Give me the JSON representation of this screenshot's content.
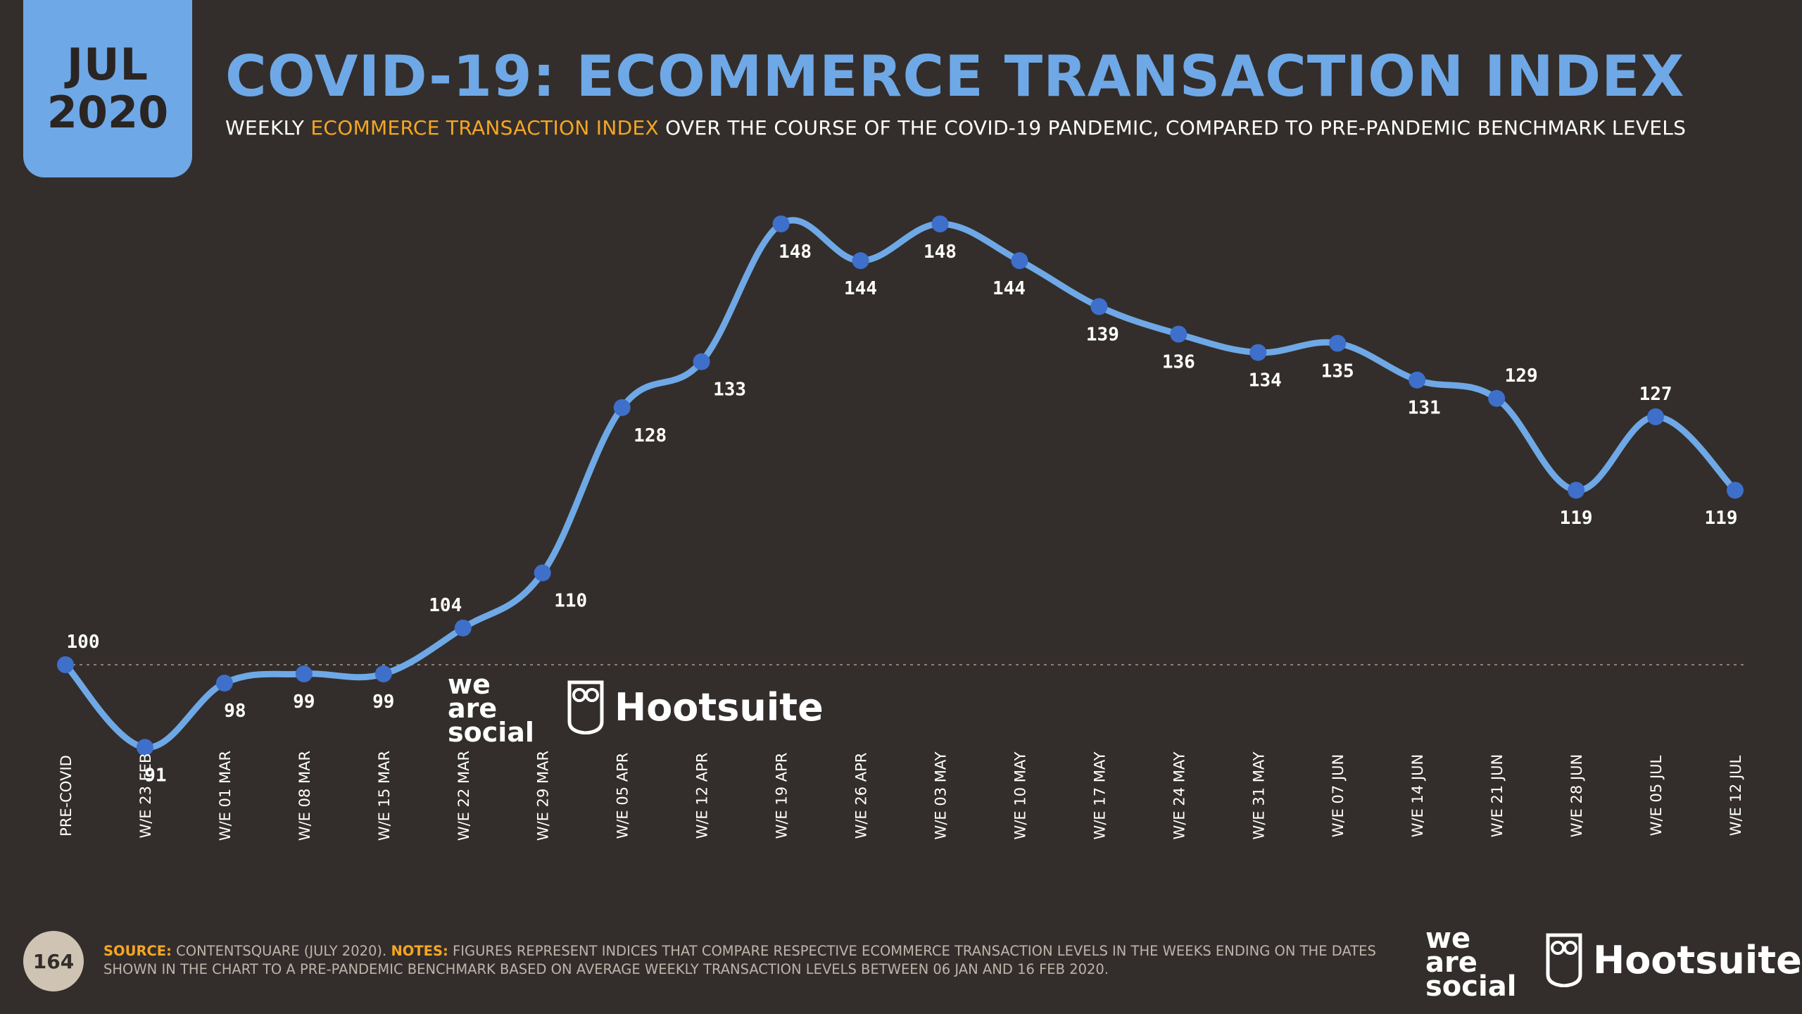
{
  "badge": {
    "month": "JUL",
    "year": "2020"
  },
  "title": "COVID-19: ECOMMERCE TRANSACTION INDEX",
  "subtitle": {
    "pre": "WEEKLY ",
    "highlight": "ECOMMERCE TRANSACTION INDEX",
    "post": " OVER THE COURSE OF THE COVID-19 PANDEMIC, COMPARED TO PRE-PANDEMIC BENCHMARK LEVELS"
  },
  "colors": {
    "background": "#332e2b",
    "line": "#6fa8e6",
    "marker": "#3e6fcb",
    "accent": "#f5a623"
  },
  "chart_data": {
    "type": "line",
    "title": "COVID-19: ECOMMERCE TRANSACTION INDEX",
    "xlabel": "",
    "ylabel": "",
    "ylim": [
      85,
      155
    ],
    "baseline": 100,
    "categories": [
      "PRE-COVID",
      "W/E 23 FEB",
      "W/E 01 MAR",
      "W/E 08 MAR",
      "W/E 15 MAR",
      "W/E 22 MAR",
      "W/E 29 MAR",
      "W/E 05 APR",
      "W/E 12 APR",
      "W/E 19 APR",
      "W/E 26 APR",
      "W/E 03 MAY",
      "W/E 10 MAY",
      "W/E 17 MAY",
      "W/E 24 MAY",
      "W/E 31 MAY",
      "W/E 07 JUN",
      "W/E 14 JUN",
      "W/E 21 JUN",
      "W/E 28 JUN",
      "W/E 05 JUL",
      "W/E 12 JUL"
    ],
    "series": [
      {
        "name": "Ecommerce transaction index",
        "values": [
          100,
          91,
          98,
          99,
          99,
          104,
          110,
          128,
          133,
          148,
          144,
          148,
          144,
          139,
          136,
          134,
          135,
          131,
          129,
          119,
          127,
          119
        ]
      }
    ]
  },
  "watermark": {
    "we1": "we",
    "we2": "are",
    "we3": "social",
    "hootsuite": "Hootsuite"
  },
  "footer": {
    "page": "164",
    "source_label": "SOURCE:",
    "source_text": " CONTENTSQUARE (JULY 2020). ",
    "notes_label": "NOTES:",
    "notes_text": " FIGURES REPRESENT INDICES THAT COMPARE RESPECTIVE ECOMMERCE TRANSACTION LEVELS IN THE WEEKS ENDING ON THE DATES SHOWN IN THE CHART TO A PRE-PANDEMIC BENCHMARK BASED ON AVERAGE WEEKLY TRANSACTION LEVELS BETWEEN 06 JAN AND 16 FEB 2020."
  }
}
